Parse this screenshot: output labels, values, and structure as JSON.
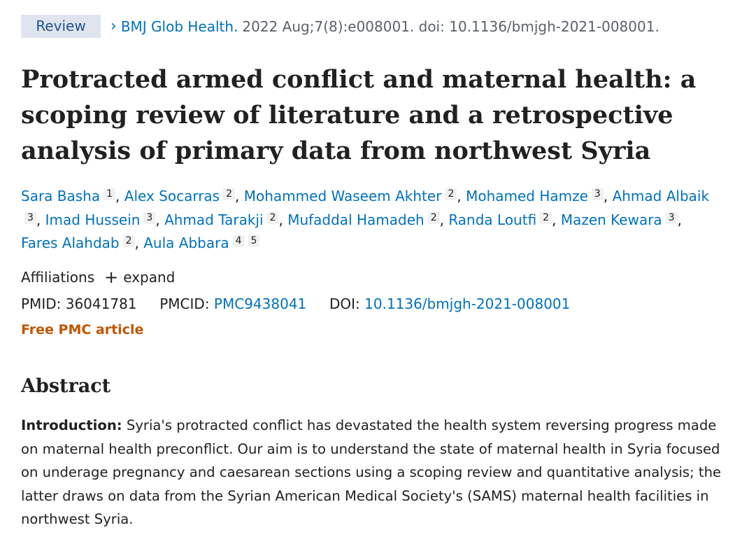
{
  "citation": {
    "badge": "Review",
    "chevron": "›",
    "journal": "BMJ Glob Health.",
    "details": "2022 Aug;7(8):e008001. doi: 10.1136/bmjgh-2021-008001."
  },
  "title": "Protracted armed conflict and maternal health: a scoping review of literature and a retrospective analysis of primary data from northwest Syria",
  "authors": [
    {
      "name": "Sara Basha",
      "affs": [
        "1"
      ]
    },
    {
      "name": "Alex Socarras",
      "affs": [
        "2"
      ]
    },
    {
      "name": "Mohammed Waseem Akhter",
      "affs": [
        "2"
      ]
    },
    {
      "name": "Mohamed Hamze",
      "affs": [
        "3"
      ]
    },
    {
      "name": "Ahmad Albaik",
      "affs": [
        "3"
      ]
    },
    {
      "name": "Imad Hussein",
      "affs": [
        "3"
      ]
    },
    {
      "name": "Ahmad Tarakji",
      "affs": [
        "2"
      ]
    },
    {
      "name": "Mufaddal Hamadeh",
      "affs": [
        "2"
      ]
    },
    {
      "name": "Randa Loutfi",
      "affs": [
        "2"
      ]
    },
    {
      "name": "Mazen Kewara",
      "affs": [
        "3"
      ]
    },
    {
      "name": "Fares Alahdab",
      "affs": [
        "2"
      ]
    },
    {
      "name": "Aula Abbara",
      "affs": [
        "4",
        "5"
      ]
    }
  ],
  "affiliations": {
    "label": "Affiliations",
    "expand_icon": "+",
    "expand_label": "expand"
  },
  "identifiers": {
    "pmid_label": "PMID:",
    "pmid": "36041781",
    "pmcid_label": "PMCID:",
    "pmcid": "PMC9438041",
    "doi_label": "DOI:",
    "doi": "10.1136/bmjgh-2021-008001"
  },
  "free_article": "Free PMC article",
  "abstract": {
    "heading": "Abstract",
    "sub_title": "Introduction:",
    "text": "Syria's protracted conflict has devastated the health system reversing progress made on maternal health preconflict. Our aim is to understand the state of maternal health in Syria focused on underage pregnancy and caesarean sections using a scoping review and quantitative analysis; the latter draws on data from the Syrian American Medical Society's (SAMS) maternal health facilities in northwest Syria."
  }
}
